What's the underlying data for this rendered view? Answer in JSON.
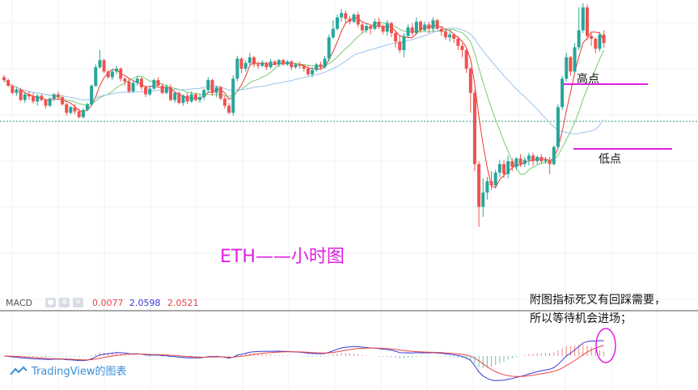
{
  "chart_title": "ETH——小时图",
  "annotations": {
    "high": "高点",
    "low": "低点",
    "note_line1": "附图指标死叉有回踩需要，",
    "note_line2": "所以等待机会进场；"
  },
  "macd": {
    "label": "MACD",
    "value1": "0.0077",
    "value2": "2.0598",
    "value3": "2.0521"
  },
  "branding": "TradingView的图表",
  "colors": {
    "up": "#26a69a",
    "down": "#ef5350",
    "ma_fast": "#e8392c",
    "ma_mid": "#7ac96f",
    "ma_slow": "#9cc3ea",
    "annotation": "#e020e0",
    "macd_line": "#3b3bd4",
    "signal_line": "#e84545"
  },
  "chart_data": {
    "type": "candlestick",
    "title": "ETH——小时图",
    "candles": [
      [
        62,
        58,
        65,
        55
      ],
      [
        58,
        50,
        60,
        48
      ],
      [
        50,
        40,
        52,
        38
      ],
      [
        40,
        45,
        48,
        36
      ],
      [
        45,
        30,
        47,
        28
      ],
      [
        30,
        38,
        40,
        26
      ],
      [
        38,
        35,
        42,
        30
      ],
      [
        35,
        28,
        40,
        25
      ],
      [
        28,
        36,
        38,
        22
      ],
      [
        36,
        30,
        38,
        28
      ],
      [
        30,
        22,
        32,
        18
      ],
      [
        22,
        32,
        34,
        20
      ],
      [
        32,
        38,
        40,
        28
      ],
      [
        38,
        34,
        42,
        30
      ],
      [
        34,
        24,
        36,
        22
      ],
      [
        24,
        12,
        26,
        8
      ],
      [
        12,
        20,
        22,
        10
      ],
      [
        20,
        14,
        24,
        10
      ],
      [
        14,
        6,
        18,
        4
      ],
      [
        6,
        16,
        18,
        4
      ],
      [
        16,
        24,
        26,
        14
      ],
      [
        24,
        50,
        52,
        22
      ],
      [
        50,
        76,
        80,
        48
      ],
      [
        76,
        86,
        100,
        74
      ],
      [
        86,
        70,
        88,
        68
      ],
      [
        70,
        62,
        72,
        60
      ],
      [
        62,
        70,
        74,
        58
      ],
      [
        70,
        74,
        78,
        66
      ],
      [
        74,
        60,
        76,
        56
      ],
      [
        60,
        56,
        62,
        50
      ],
      [
        56,
        42,
        60,
        40
      ],
      [
        42,
        54,
        58,
        40
      ],
      [
        54,
        60,
        64,
        50
      ],
      [
        60,
        48,
        62,
        44
      ],
      [
        48,
        38,
        50,
        34
      ],
      [
        38,
        46,
        50,
        36
      ],
      [
        46,
        58,
        60,
        44
      ],
      [
        58,
        50,
        62,
        48
      ],
      [
        50,
        40,
        54,
        38
      ],
      [
        40,
        48,
        52,
        38
      ],
      [
        48,
        30,
        52,
        28
      ],
      [
        30,
        40,
        42,
        26
      ],
      [
        40,
        26,
        42,
        24
      ],
      [
        26,
        36,
        38,
        22
      ],
      [
        36,
        28,
        40,
        24
      ],
      [
        28,
        38,
        42,
        26
      ],
      [
        38,
        30,
        40,
        28
      ],
      [
        30,
        34,
        38,
        26
      ],
      [
        34,
        44,
        46,
        30
      ],
      [
        44,
        58,
        62,
        40
      ],
      [
        58,
        40,
        60,
        36
      ],
      [
        40,
        48,
        50,
        34
      ],
      [
        48,
        32,
        50,
        30
      ],
      [
        32,
        22,
        36,
        18
      ],
      [
        22,
        12,
        26,
        10
      ],
      [
        12,
        60,
        65,
        8
      ],
      [
        60,
        88,
        92,
        56
      ],
      [
        88,
        74,
        90,
        68
      ],
      [
        74,
        82,
        86,
        70
      ],
      [
        82,
        90,
        96,
        78
      ],
      [
        90,
        80,
        92,
        76
      ],
      [
        80,
        78,
        84,
        74
      ],
      [
        78,
        82,
        86,
        76
      ],
      [
        82,
        76,
        84,
        72
      ],
      [
        76,
        84,
        88,
        74
      ],
      [
        84,
        80,
        86,
        78
      ],
      [
        80,
        86,
        88,
        76
      ],
      [
        86,
        80,
        88,
        78
      ],
      [
        80,
        84,
        86,
        78
      ],
      [
        84,
        76,
        86,
        72
      ],
      [
        76,
        80,
        82,
        74
      ],
      [
        80,
        78,
        84,
        74
      ],
      [
        78,
        74,
        80,
        70
      ],
      [
        74,
        66,
        78,
        64
      ],
      [
        66,
        72,
        76,
        62
      ],
      [
        72,
        80,
        82,
        70
      ],
      [
        80,
        76,
        84,
        72
      ],
      [
        76,
        88,
        92,
        74
      ],
      [
        88,
        118,
        122,
        84
      ],
      [
        118,
        130,
        142,
        116
      ],
      [
        130,
        146,
        150,
        128
      ],
      [
        146,
        152,
        158,
        140
      ],
      [
        152,
        144,
        156,
        138
      ],
      [
        144,
        140,
        148,
        136
      ],
      [
        140,
        150,
        152,
        138
      ],
      [
        150,
        136,
        154,
        132
      ],
      [
        136,
        128,
        140,
        124
      ],
      [
        128,
        134,
        138,
        124
      ],
      [
        134,
        130,
        136,
        122
      ],
      [
        130,
        140,
        144,
        128
      ],
      [
        140,
        134,
        146,
        130
      ],
      [
        134,
        126,
        136,
        122
      ],
      [
        126,
        138,
        142,
        120
      ],
      [
        138,
        124,
        140,
        118
      ],
      [
        124,
        112,
        126,
        104
      ],
      [
        112,
        100,
        120,
        96
      ],
      [
        100,
        120,
        124,
        90
      ],
      [
        120,
        132,
        136,
        118
      ],
      [
        132,
        124,
        138,
        120
      ],
      [
        124,
        140,
        146,
        122
      ],
      [
        140,
        128,
        142,
        124
      ],
      [
        128,
        136,
        140,
        126
      ],
      [
        136,
        130,
        140,
        124
      ],
      [
        130,
        142,
        146,
        126
      ],
      [
        142,
        130,
        144,
        128
      ],
      [
        130,
        126,
        134,
        120
      ],
      [
        126,
        118,
        130,
        114
      ],
      [
        118,
        122,
        126,
        112
      ],
      [
        122,
        116,
        124,
        110
      ],
      [
        116,
        106,
        120,
        100
      ],
      [
        106,
        100,
        110,
        90
      ],
      [
        100,
        74,
        102,
        68
      ],
      [
        74,
        40,
        76,
        12
      ],
      [
        40,
        -60,
        44,
        -70
      ],
      [
        -60,
        -120,
        -56,
        -148
      ],
      [
        -120,
        -100,
        -80,
        -134
      ],
      [
        -100,
        -84,
        -78,
        -110
      ],
      [
        -84,
        -90,
        -70,
        -96
      ],
      [
        -90,
        -72,
        -68,
        -94
      ],
      [
        -72,
        -60,
        -54,
        -78
      ],
      [
        -60,
        -74,
        -54,
        -80
      ],
      [
        -74,
        -56,
        -48,
        -80
      ],
      [
        -56,
        -64,
        -52,
        -70
      ],
      [
        -64,
        -52,
        -50,
        -68
      ],
      [
        -52,
        -60,
        -46,
        -64
      ],
      [
        -60,
        -54,
        -50,
        -64
      ],
      [
        -54,
        -48,
        -44,
        -62
      ],
      [
        -48,
        -56,
        -44,
        -62
      ],
      [
        -56,
        -50,
        -48,
        -60
      ],
      [
        -50,
        -56,
        -46,
        -60
      ],
      [
        -56,
        -54,
        -50,
        -60
      ],
      [
        -54,
        -60,
        -50,
        -74
      ],
      [
        -60,
        -36,
        -34,
        -62
      ],
      [
        -36,
        20,
        24,
        -38
      ],
      [
        20,
        60,
        64,
        16
      ],
      [
        60,
        90,
        96,
        56
      ],
      [
        90,
        70,
        92,
        64
      ],
      [
        70,
        104,
        110,
        68
      ],
      [
        104,
        128,
        160,
        100
      ],
      [
        128,
        160,
        166,
        124
      ],
      [
        160,
        120,
        164,
        114
      ],
      [
        120,
        116,
        124,
        106
      ],
      [
        116,
        102,
        118,
        96
      ],
      [
        102,
        122,
        126,
        98
      ],
      [
        122,
        110,
        128,
        104
      ]
    ]
  }
}
